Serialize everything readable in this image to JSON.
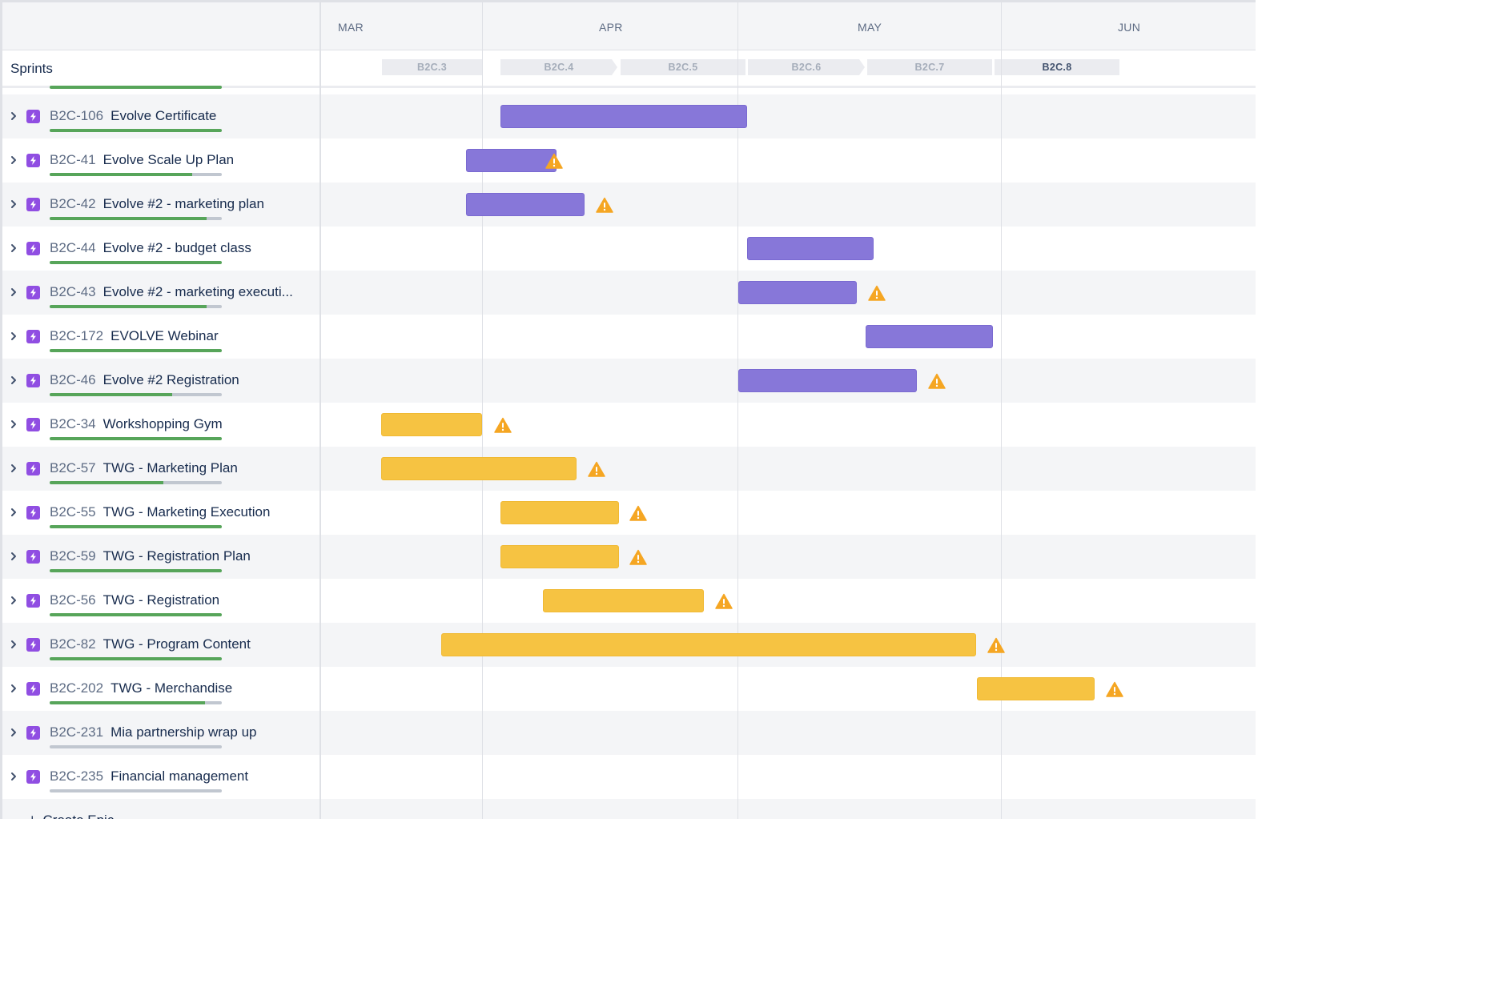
{
  "header": {
    "months": [
      "MAR",
      "APR",
      "MAY",
      "JUN"
    ],
    "sprints_label": "Sprints",
    "sprints": [
      {
        "name": "B2C.3",
        "current": false
      },
      {
        "name": "B2C.4",
        "current": false
      },
      {
        "name": "B2C.5",
        "current": false
      },
      {
        "name": "B2C.6",
        "current": false
      },
      {
        "name": "B2C.7",
        "current": false
      },
      {
        "name": "B2C.8",
        "current": true
      }
    ]
  },
  "colors": {
    "purple_epic": "#8777d9",
    "yellow_epic": "#f6c342",
    "warning": "#f5a623",
    "progress_done": "#57a55a",
    "progress_todo": "#c1c7d0"
  },
  "epics": [
    {
      "key": "B2C-106",
      "title": "Evolve Certificate",
      "progress": 1.0,
      "color": "purple",
      "warning": false
    },
    {
      "key": "B2C-41",
      "title": "Evolve Scale Up Plan",
      "progress": 0.83,
      "color": "purple",
      "warning": true
    },
    {
      "key": "B2C-42",
      "title": "Evolve #2 - marketing plan",
      "progress": 0.91,
      "color": "purple",
      "warning": true
    },
    {
      "key": "B2C-44",
      "title": "Evolve #2 - budget class",
      "progress": 1.0,
      "color": "purple",
      "warning": false
    },
    {
      "key": "B2C-43",
      "title": "Evolve #2 - marketing executi...",
      "progress": 0.91,
      "color": "purple",
      "warning": true
    },
    {
      "key": "B2C-172",
      "title": "EVOLVE Webinar",
      "progress": 1.0,
      "color": "purple",
      "warning": false
    },
    {
      "key": "B2C-46",
      "title": "Evolve #2 Registration",
      "progress": 0.71,
      "color": "purple",
      "warning": true
    },
    {
      "key": "B2C-34",
      "title": "Workshopping Gym",
      "progress": 1.0,
      "color": "yellow",
      "warning": true
    },
    {
      "key": "B2C-57",
      "title": "TWG - Marketing Plan",
      "progress": 0.66,
      "color": "yellow",
      "warning": true
    },
    {
      "key": "B2C-55",
      "title": "TWG - Marketing Execution",
      "progress": 1.0,
      "color": "yellow",
      "warning": true
    },
    {
      "key": "B2C-59",
      "title": "TWG - Registration Plan",
      "progress": 1.0,
      "color": "yellow",
      "warning": true
    },
    {
      "key": "B2C-56",
      "title": "TWG - Registration",
      "progress": 1.0,
      "color": "yellow",
      "warning": true
    },
    {
      "key": "B2C-82",
      "title": "TWG - Program Content",
      "progress": 1.0,
      "color": "yellow",
      "warning": true
    },
    {
      "key": "B2C-202",
      "title": "TWG - Merchandise",
      "progress": 0.9,
      "color": "yellow",
      "warning": true
    },
    {
      "key": "B2C-231",
      "title": "Mia partnership wrap up",
      "progress": 0,
      "color": null,
      "warning": false
    },
    {
      "key": "B2C-235",
      "title": "Financial management",
      "progress": 0,
      "color": null,
      "warning": false
    }
  ],
  "footer": {
    "create_label": "Create Epic"
  }
}
